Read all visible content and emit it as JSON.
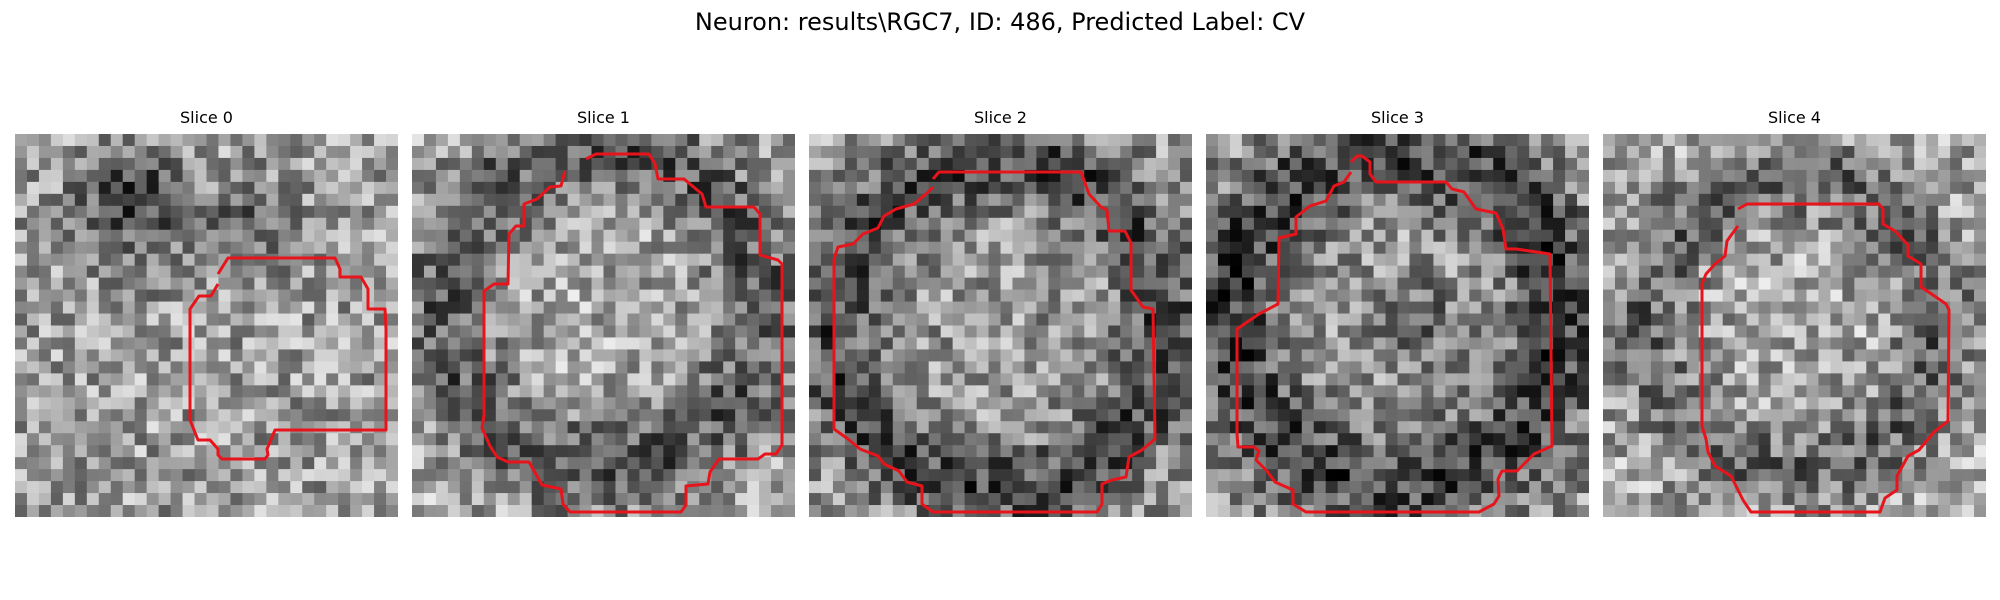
{
  "figure": {
    "title": "Neuron: results\\RGC7, ID: 486, Predicted Label: CV",
    "contour_color": "#e8141b"
  },
  "panels": [
    {
      "title": "Slice 0"
    },
    {
      "title": "Slice 1"
    },
    {
      "title": "Slice 2"
    },
    {
      "title": "Slice 3"
    },
    {
      "title": "Slice 4"
    }
  ]
}
